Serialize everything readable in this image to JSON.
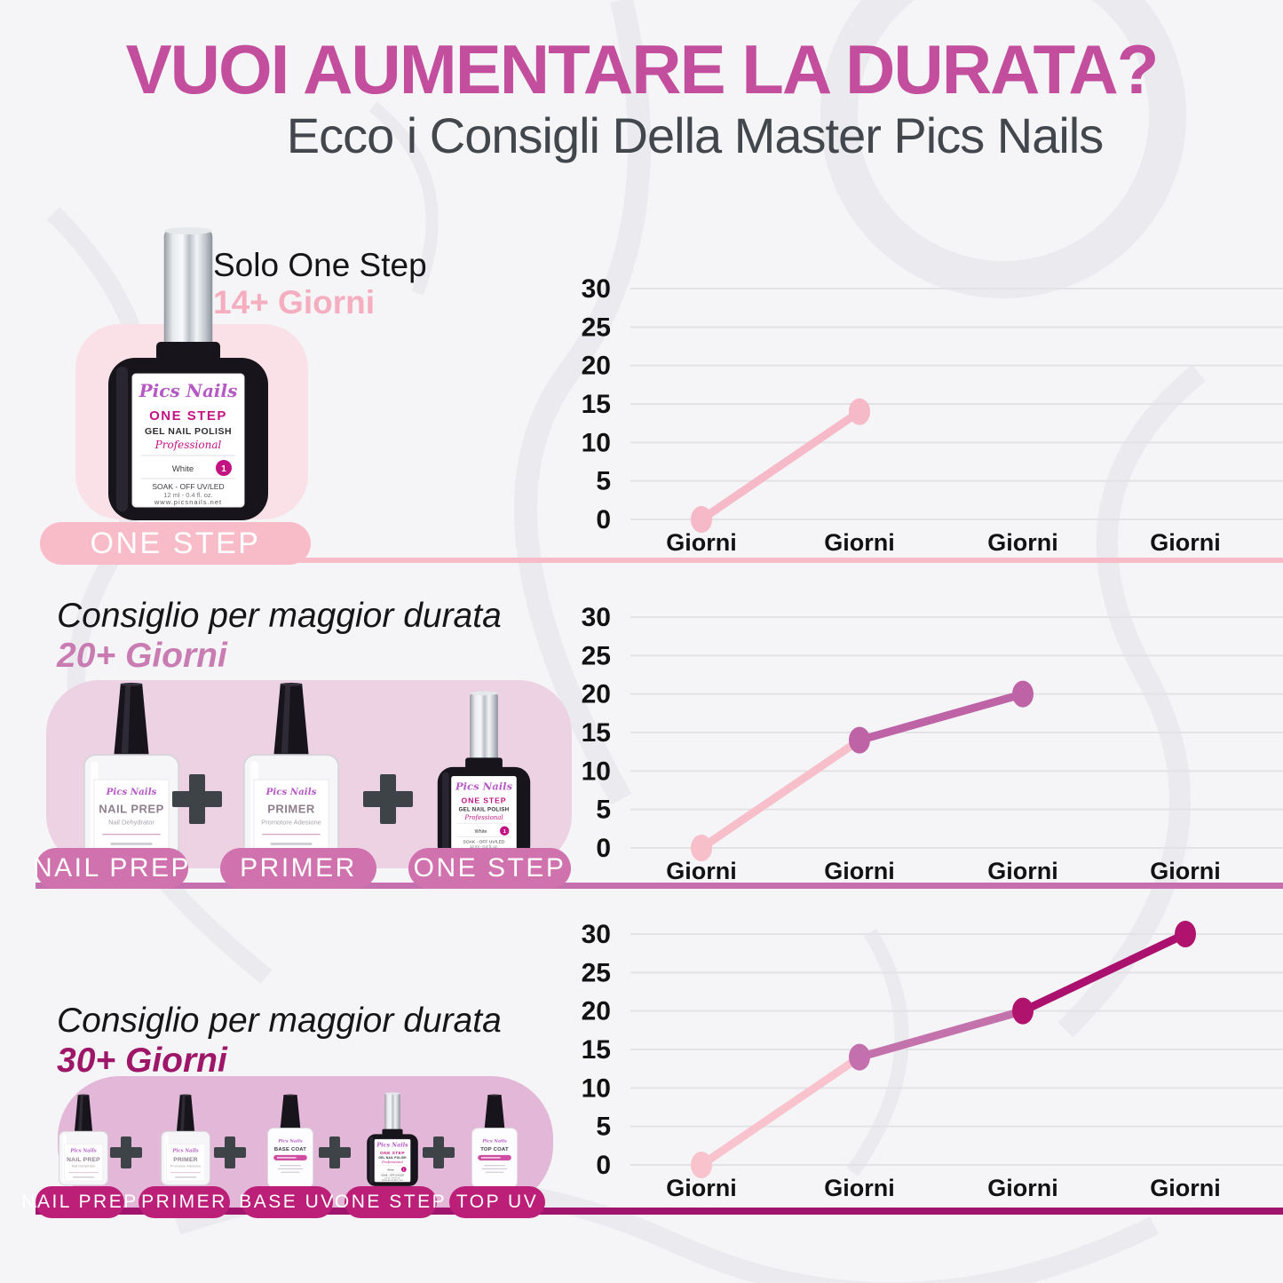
{
  "header": {
    "title": "VUOI AUMENTARE LA DURATA?",
    "subtitle": "Ecco i Consigli Della Master Pics Nails"
  },
  "sections": [
    {
      "heading": "Solo One Step",
      "duration_label": "14+ Giorni",
      "pills": [
        "ONE STEP"
      ]
    },
    {
      "heading": "Consiglio per maggior durata",
      "duration_label": "20+ Giorni",
      "pills": [
        "NAIL PREP",
        "PRIMER",
        "ONE STEP"
      ]
    },
    {
      "heading": "Consiglio per maggior durata",
      "duration_label": "30+ Giorni",
      "pills": [
        "NAIL PREP",
        "PRIMER",
        "BASE UV",
        "ONE STEP",
        "TOP UV"
      ]
    }
  ],
  "bottles": {
    "one_step": {
      "brand": "Pics Nails",
      "name": "ONE STEP",
      "line2": "GEL NAIL POLISH",
      "line3": "Professional",
      "shade": "White",
      "shade_number": "1",
      "line4": "SOAK - OFF UV/LED",
      "line5": "12 ml - 0.4 fl. oz.",
      "line6": "www.picsnails.net"
    },
    "nail_prep": {
      "brand": "Pics Nails",
      "name": "NAIL PREP",
      "subtitle": "Nail Dehydrator"
    },
    "primer": {
      "brand": "Pics Nails",
      "name": "PRIMER",
      "subtitle": "Promotore Adesione"
    },
    "base_coat": {
      "brand": "Pics Nails",
      "name": "BASE COAT"
    },
    "top_coat": {
      "brand": "Pics Nails",
      "name": "TOP COAT"
    }
  },
  "chart_data": [
    {
      "type": "line",
      "title": "",
      "x_labels": [
        "Giorni",
        "Giorni",
        "Giorni",
        "Giorni"
      ],
      "y_ticks": [
        0,
        5,
        10,
        15,
        20,
        25,
        30
      ],
      "ylim": [
        0,
        30
      ],
      "grid": true,
      "values": [
        0,
        14
      ],
      "duration_days": 14,
      "segment_colors": [
        "#f6b9c7"
      ],
      "point_colors": [
        "#f6b9c7",
        "#f6b9c7"
      ]
    },
    {
      "type": "line",
      "title": "",
      "x_labels": [
        "Giorni",
        "Giorni",
        "Giorni",
        "Giorni"
      ],
      "y_ticks": [
        0,
        5,
        10,
        15,
        20,
        25,
        30
      ],
      "ylim": [
        0,
        30
      ],
      "grid": true,
      "values": [
        0,
        14,
        20
      ],
      "duration_days": 20,
      "segment_colors": [
        "#f6bfca",
        "#bd63a6"
      ],
      "point_colors": [
        "#f6bfca",
        "#bd63a6",
        "#bd63a6"
      ]
    },
    {
      "type": "line",
      "title": "",
      "x_labels": [
        "Giorni",
        "Giorni",
        "Giorni",
        "Giorni"
      ],
      "y_ticks": [
        0,
        5,
        10,
        15,
        20,
        25,
        30
      ],
      "ylim": [
        0,
        30
      ],
      "grid": true,
      "values": [
        0,
        14,
        20,
        30
      ],
      "duration_days": 30,
      "segment_colors": [
        "#f8c3cd",
        "#c472ac",
        "#ab106e"
      ],
      "point_colors": [
        "#f8c3cd",
        "#c46fae",
        "#b0136e",
        "#b0136e"
      ]
    }
  ],
  "colors": {
    "title": "#c24e9d",
    "subtitle": "#42474e",
    "heading": "#151518",
    "axis_text": "#121212",
    "gridline": "#e3e2e6",
    "plus_sign": "#3e4347",
    "pill_text": "#ffffff",
    "section1": {
      "duration": "#f5aebf",
      "panel": "#f9e1e7",
      "pill": "#f8bcc9",
      "divider": "#f8bcc9"
    },
    "section2": {
      "duration": "#c97cb2",
      "panel": "#edd2e3",
      "pill": "#cf72ae",
      "divider": "#c66fae"
    },
    "section3": {
      "duration": "#9e1668",
      "panel": "#e3b7d8",
      "pill": "#bb1f78",
      "divider": "#a1146e"
    },
    "bottle": {
      "brand_purple": "#b55ac5",
      "magenta": "#c31383",
      "body_black": "#17141b"
    }
  }
}
